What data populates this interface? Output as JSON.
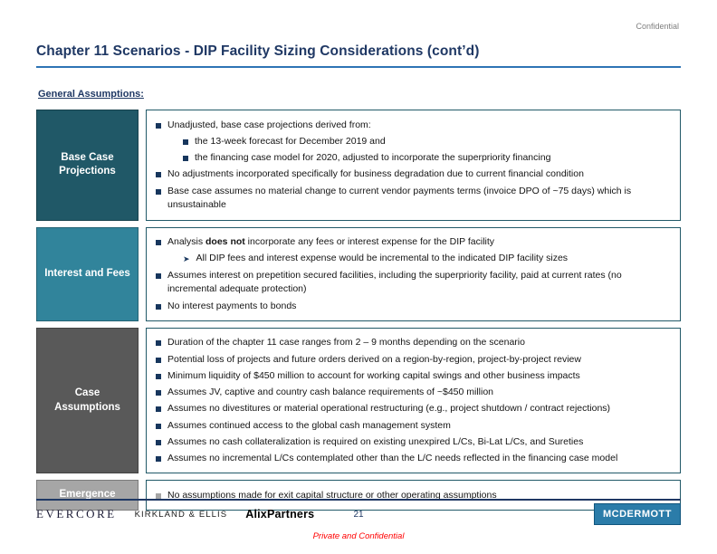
{
  "meta": {
    "confidential": "Confidential",
    "title": "Chapter 11 Scenarios - DIP Facility Sizing Considerations (cont’d)",
    "section_heading": "General Assumptions:"
  },
  "colors": {
    "title_navy": "#1F3864",
    "rule_blue": "#2E74B5",
    "box_border_teal": "#215968",
    "bullet_navy": "#17365D",
    "mcdermott_bg": "#2B7CA9"
  },
  "table": {
    "rows": [
      {
        "label": "Base Case Projections",
        "label_bg": "#205867",
        "items": [
          {
            "level": 1,
            "bullet": "square",
            "text": "Unadjusted, base case projections derived from:"
          },
          {
            "level": 2,
            "bullet": "square",
            "text": "the 13-week forecast for December 2019 and"
          },
          {
            "level": 2,
            "bullet": "square",
            "text": "the financing case model for 2020, adjusted to incorporate the superpriority financing"
          },
          {
            "level": 1,
            "bullet": "square",
            "text": "No adjustments incorporated specifically for business degradation due to current financial condition"
          },
          {
            "level": 1,
            "bullet": "square",
            "text": "Base case assumes no material change to current vendor payments terms (invoice DPO of ~75 days) which is unsustainable"
          }
        ]
      },
      {
        "label": "Interest and Fees",
        "label_bg": "#31849B",
        "items": [
          {
            "level": 1,
            "bullet": "square",
            "text": "Analysis **does not** incorporate any fees or interest expense for the DIP facility"
          },
          {
            "level": 2,
            "bullet": "arrow",
            "text": "All DIP fees and interest expense would be incremental to the indicated DIP facility sizes"
          },
          {
            "level": 1,
            "bullet": "square",
            "text": "Assumes interest on prepetition secured facilities, including the superpriority facility, paid at current rates (no incremental adequate protection)"
          },
          {
            "level": 1,
            "bullet": "square",
            "text": "No interest payments to bonds"
          }
        ]
      },
      {
        "label": "Case Assumptions",
        "label_bg": "#595959",
        "items": [
          {
            "level": 1,
            "bullet": "square",
            "text": "Duration of the chapter 11 case ranges from 2 – 9 months depending on the scenario"
          },
          {
            "level": 1,
            "bullet": "square",
            "text": "Potential loss of projects and future orders derived on a region-by-region, project-by-project review"
          },
          {
            "level": 1,
            "bullet": "square",
            "text": "Minimum liquidity of $450 million to account for working capital swings and other business impacts"
          },
          {
            "level": 1,
            "bullet": "square",
            "text": "Assumes JV, captive and country cash balance requirements of ~$450 million"
          },
          {
            "level": 1,
            "bullet": "square",
            "text": "Assumes no divestitures or material operational restructuring (e.g., project shutdown / contract rejections)"
          },
          {
            "level": 1,
            "bullet": "square",
            "text": "Assumes continued access to the global cash management system"
          },
          {
            "level": 1,
            "bullet": "square",
            "text": "Assumes no cash collateralization is required on existing unexpired L/Cs, Bi-Lat L/Cs, and Sureties"
          },
          {
            "level": 1,
            "bullet": "square",
            "text": "Assumes no incremental L/Cs contemplated other than the L/C needs reflected in the financing case model"
          }
        ]
      },
      {
        "label": "Emergence",
        "label_bg": "#A6A6A6",
        "bullet_color": "#A6A6A6",
        "items": [
          {
            "level": 1,
            "bullet": "square",
            "text": "No assumptions made for exit capital structure or other operating assumptions"
          }
        ]
      }
    ]
  },
  "footer": {
    "logos": {
      "evercore": "EVERCORE",
      "kirkland": "KIRKLAND & ELLIS",
      "alixpartners": "AlixPartners",
      "mcdermott": "MCDERMOTT"
    },
    "page_number": "21",
    "note": "Private and Confidential"
  }
}
